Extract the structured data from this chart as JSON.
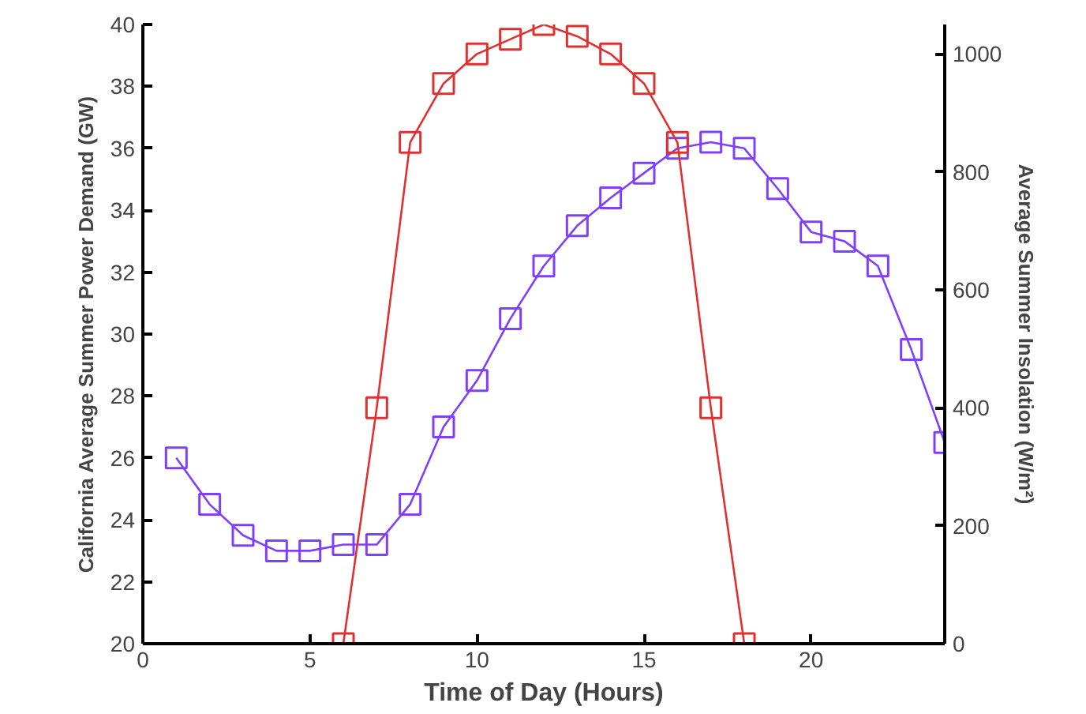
{
  "chart_data": {
    "type": "line",
    "xlabel": "Time of Day (Hours)",
    "ylabel": "California Average Summer Power Demand (GW)",
    "y2label": "Average Summer Insolation (W/m²)",
    "marker": "square",
    "line_style": "solid",
    "grid": false,
    "xlim": [
      0,
      24
    ],
    "xticks": [
      0,
      5,
      10,
      15,
      20
    ],
    "ylim": [
      20,
      40
    ],
    "yticks": [
      20,
      22,
      24,
      26,
      28,
      30,
      32,
      34,
      36,
      38,
      40
    ],
    "y2lim": [
      0,
      1050
    ],
    "y2ticks": [
      0,
      200,
      400,
      600,
      800,
      1000
    ],
    "series": [
      {
        "color": "#7f3fff",
        "x": [
          1,
          2,
          3,
          4,
          5,
          6,
          7,
          8,
          9,
          10,
          11,
          12,
          13,
          14,
          15,
          16,
          17,
          18,
          19,
          20,
          21,
          22,
          23,
          24
        ],
        "values": [
          26,
          24.5,
          23.5,
          23,
          23,
          23.2,
          23.2,
          24.5,
          27,
          28.5,
          30.5,
          32.2,
          33.5,
          34.4,
          35.2,
          36,
          36.2,
          36,
          34.7,
          33.3,
          33,
          32.2,
          29.5,
          26.5
        ]
      },
      {
        "color": "#e03030",
        "axis": "y2",
        "x": [
          6,
          7,
          8,
          9,
          10,
          11,
          12,
          13,
          14,
          15,
          16,
          17,
          18
        ],
        "values": [
          0,
          400,
          850,
          950,
          1000,
          1025,
          1050,
          1030,
          1000,
          950,
          850,
          400,
          0
        ]
      }
    ]
  }
}
